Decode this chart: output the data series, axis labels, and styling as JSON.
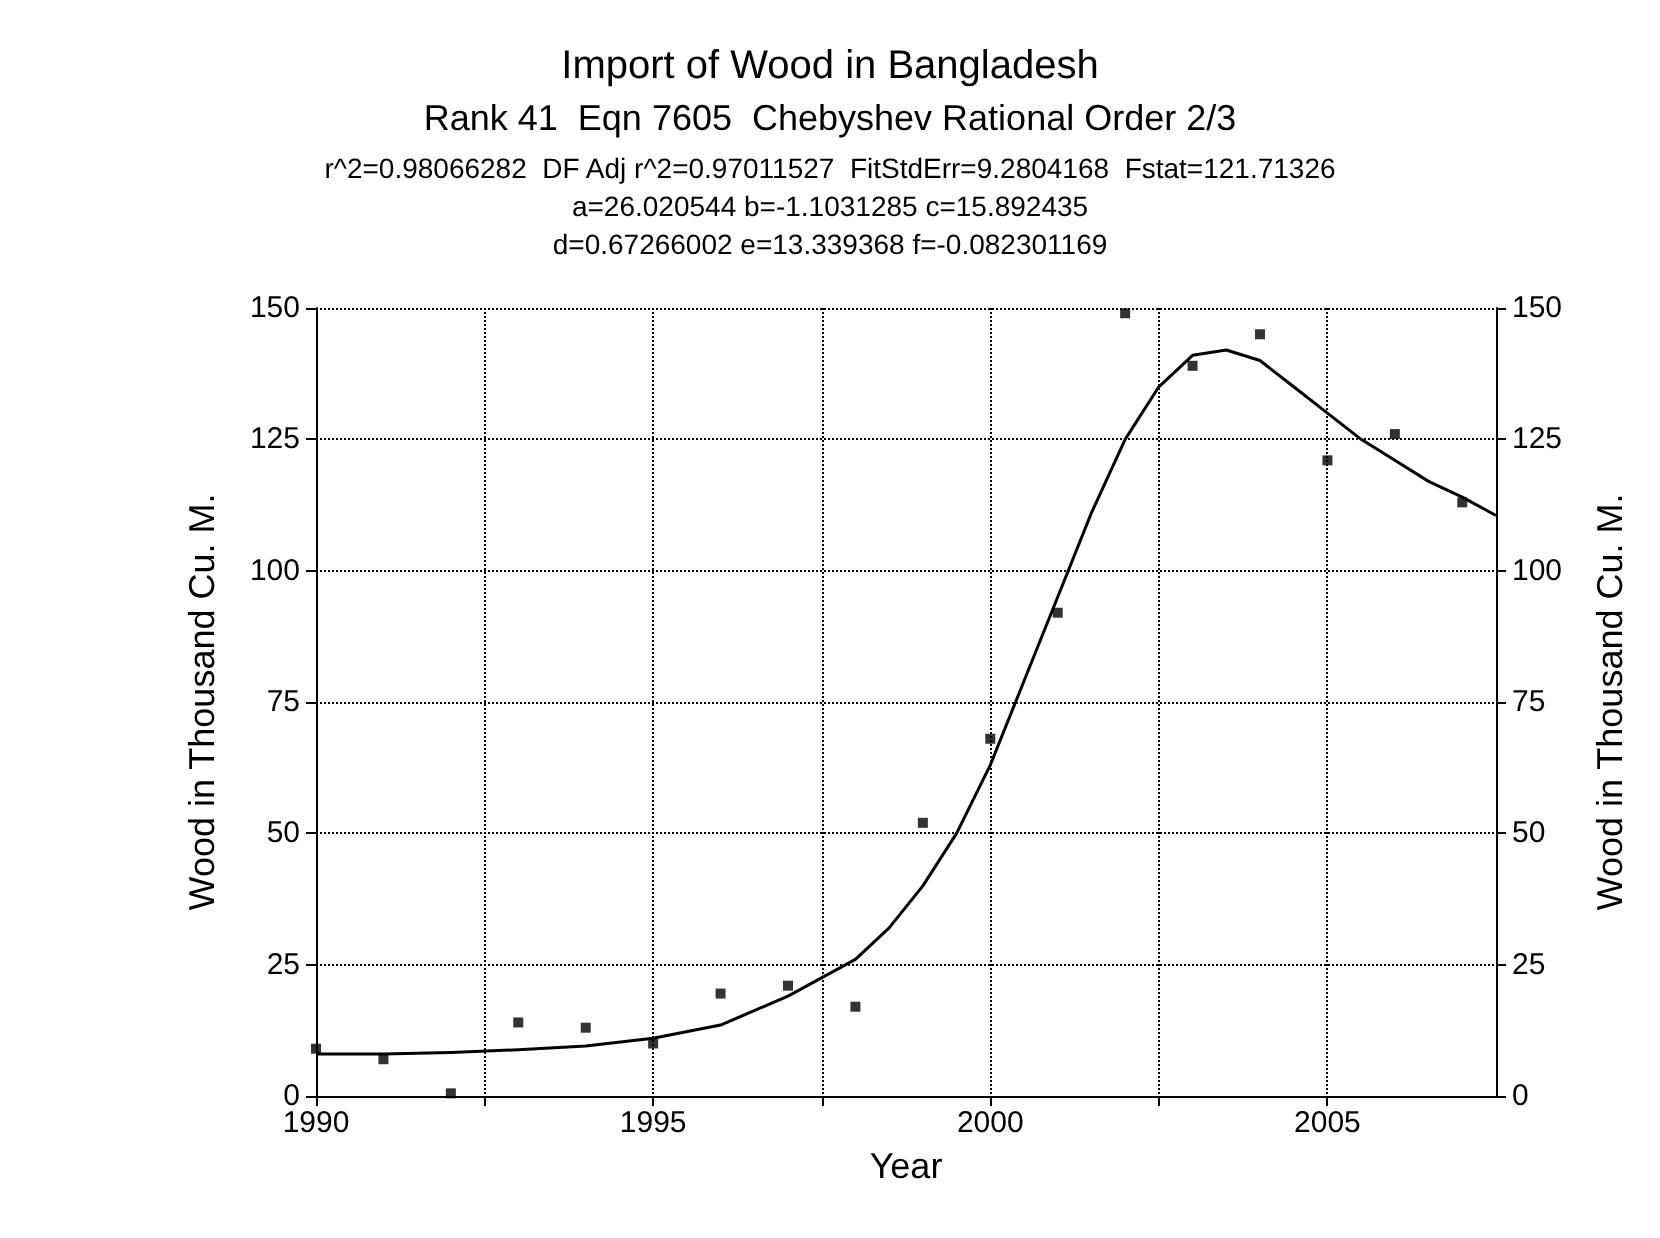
{
  "chart_data": {
    "type": "scatter",
    "title": "Import of Wood in Bangladesh",
    "subtitle": "Rank 41  Eqn 7605  Chebyshev Rational Order 2/3",
    "annotations": [
      "r^2=0.98066282  DF Adj r^2=0.97011527  FitStdErr=9.2804168  Fstat=121.71326",
      "a=26.020544 b=-1.1031285 c=15.892435",
      "d=0.67266002 e=13.339368 f=-0.082301169"
    ],
    "xlabel": "Year",
    "ylabel": "Wood in Thousand Cu. M.",
    "y2label": "Wood in Thousand Cu. M.",
    "x": [
      1990,
      1991,
      1992,
      1993,
      1994,
      1995,
      1996,
      1997,
      1998,
      1999,
      2000,
      2001,
      2002,
      2003,
      2004,
      2005,
      2006,
      2007
    ],
    "series": [
      {
        "color": "#000000",
        "marker": "square",
        "values": [
          9,
          7,
          0.5,
          14,
          13,
          10,
          19.5,
          21,
          17,
          52,
          68,
          92,
          149,
          139,
          145,
          121,
          126,
          113
        ]
      },
      {
        "type": "line",
        "color": "#000000",
        "marker": "none",
        "line_style": "solid",
        "x": [
          1990,
          1991,
          1992,
          1993,
          1994,
          1995,
          1996,
          1997,
          1998,
          1998.5,
          1999,
          1999.5,
          2000,
          2000.5,
          2001,
          2001.5,
          2002,
          2002.5,
          2003,
          2003.5,
          2004,
          2004.5,
          2005,
          2005.5,
          2006,
          2006.5,
          2007,
          2007.5
        ],
        "values": [
          8,
          8,
          8.3,
          8.8,
          9.5,
          11,
          13.5,
          19,
          26,
          32,
          40,
          50,
          63,
          79,
          95,
          111,
          125,
          135,
          141,
          142,
          140,
          135,
          130,
          125,
          121,
          117,
          114,
          110.5
        ]
      }
    ],
    "xlim": [
      1990,
      2007.5
    ],
    "xticks": [
      1990,
      {
        "value": 1992.5,
        "label": null
      },
      1995,
      {
        "value": 1997.5,
        "label": null
      },
      2000,
      {
        "value": 2002.5,
        "label": null
      },
      2005
    ],
    "ylim": [
      0,
      150
    ],
    "yticks": [
      0,
      25,
      50,
      75,
      100,
      125,
      150
    ],
    "y2lim": [
      0,
      150
    ],
    "y2ticks": [
      0,
      25,
      50,
      75,
      100,
      125,
      150
    ],
    "grid": true
  }
}
